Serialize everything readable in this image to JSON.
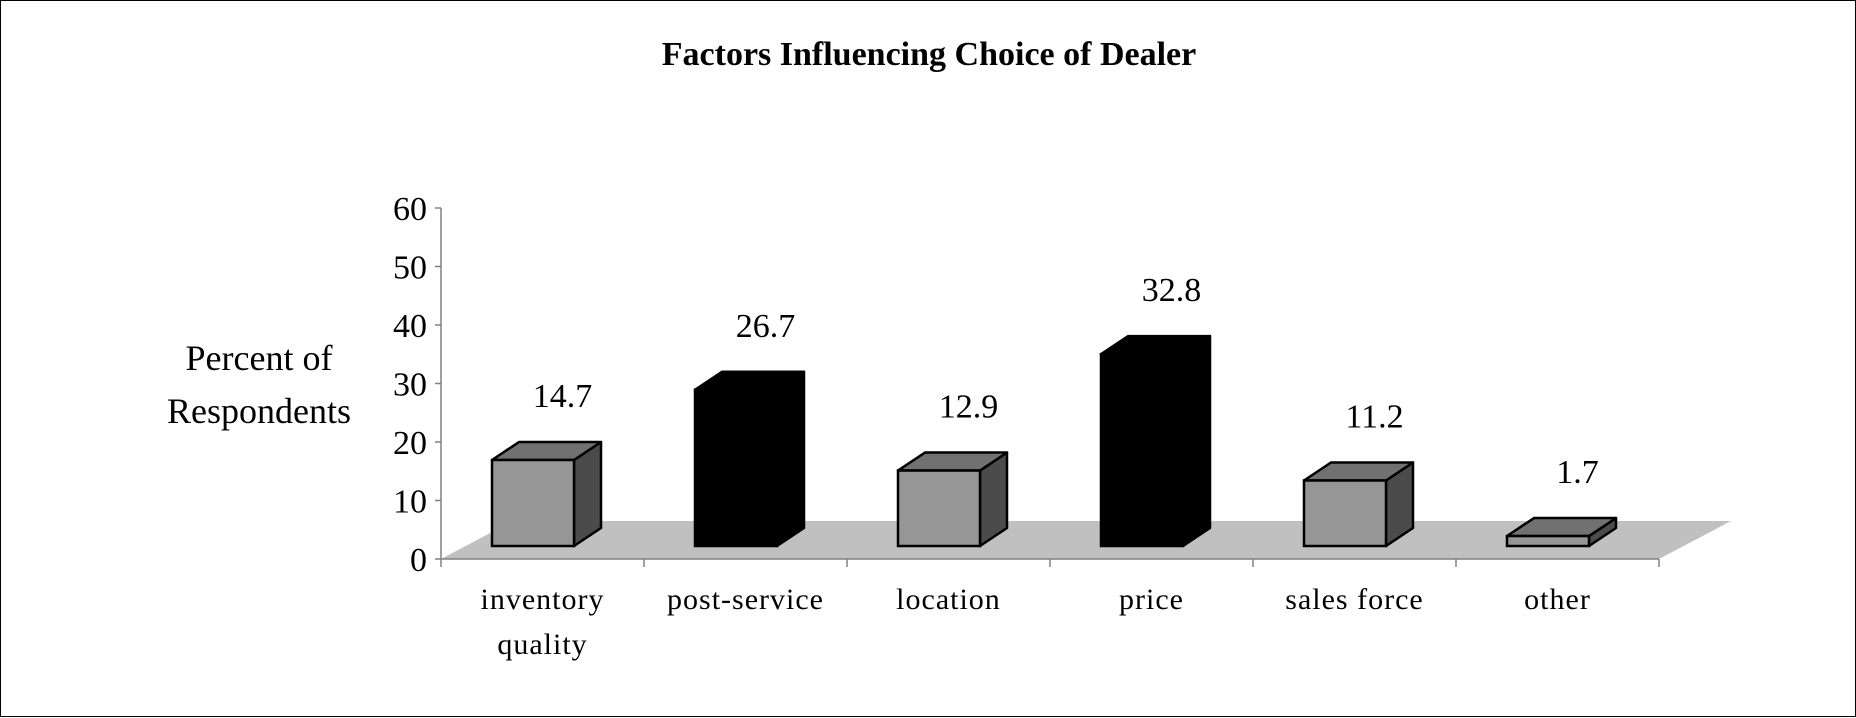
{
  "chart_data": {
    "type": "bar",
    "title": "Factors Influencing Choice of Dealer",
    "ylabel": [
      "Percent of",
      "Respondents"
    ],
    "xlabel": "",
    "ylim": [
      0,
      60
    ],
    "yticks": [
      0,
      10,
      20,
      30,
      40,
      50,
      60
    ],
    "categories": [
      [
        "inventory",
        "quality"
      ],
      [
        "post-service"
      ],
      [
        "location"
      ],
      [
        "price"
      ],
      [
        "sales force"
      ],
      [
        "other"
      ]
    ],
    "values": [
      14.7,
      26.7,
      12.9,
      32.8,
      11.2,
      1.7
    ],
    "data_labels": [
      "14.7",
      "26.7",
      "12.9",
      "32.8",
      "11.2",
      "1.7"
    ],
    "bar_colors": [
      "#969696",
      "#000000",
      "#969696",
      "#000000",
      "#969696",
      "#969696"
    ],
    "floor_color": "#c0c0c0",
    "style": "3d",
    "legend": "none",
    "grid": false
  }
}
